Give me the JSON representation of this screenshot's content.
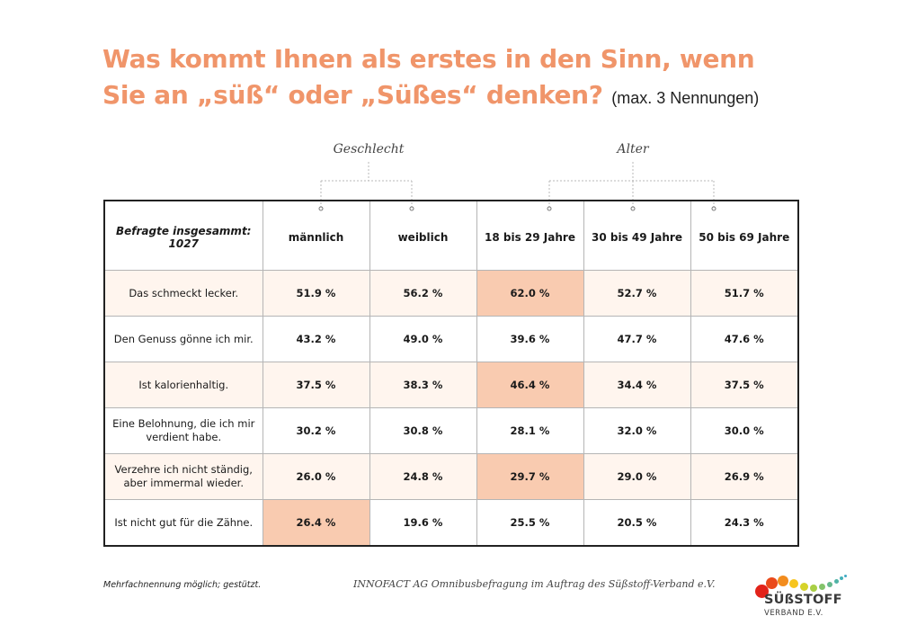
{
  "title": {
    "line1": "Was kommt Ihnen als erstes in den Sinn, wenn",
    "line2": "Sie an „süß“ oder „Süßes“ denken?",
    "subtitle": "(max. 3 Nennungen)"
  },
  "groups": {
    "gender_label": "Geschlecht",
    "age_label": "Alter"
  },
  "chart_data": {
    "type": "table",
    "title": "Was kommt Ihnen als erstes in den Sinn, wenn Sie an „süß“ oder „Süßes“ denken? (max. 3 Nennungen)",
    "corner_note": "Befragte insgesammt: 1027",
    "column_groups": [
      {
        "name": "Geschlecht",
        "columns": [
          "männlich",
          "weiblich"
        ]
      },
      {
        "name": "Alter",
        "columns": [
          "18 bis 29 Jahre",
          "30 bis 49 Jahre",
          "50 bis 69 Jahre"
        ]
      }
    ],
    "columns": [
      "männlich",
      "weiblich",
      "18 bis 29 Jahre",
      "30 bis 49 Jahre",
      "50 bis 69 Jahre"
    ],
    "unit": "%",
    "rows": [
      {
        "label": "Das schmeckt lecker.",
        "values": [
          51.9,
          56.2,
          62.0,
          52.7,
          51.7
        ],
        "display": [
          "51.9 %",
          "56.2 %",
          "62.0 %",
          "52.7 %",
          "51.7 %"
        ],
        "highlight": [
          false,
          false,
          true,
          false,
          false
        ],
        "shaded": true
      },
      {
        "label": "Den Genuss gönne ich mir.",
        "values": [
          43.2,
          49.0,
          39.6,
          47.7,
          47.6
        ],
        "display": [
          "43.2 %",
          "49.0 %",
          "39.6 %",
          "47.7 %",
          "47.6 %"
        ],
        "highlight": [
          false,
          false,
          false,
          false,
          false
        ],
        "shaded": false
      },
      {
        "label": "Ist kalorienhaltig.",
        "values": [
          37.5,
          38.3,
          46.4,
          34.4,
          37.5
        ],
        "display": [
          "37.5 %",
          "38.3 %",
          "46.4 %",
          "34.4 %",
          "37.5 %"
        ],
        "highlight": [
          false,
          false,
          true,
          false,
          false
        ],
        "shaded": true
      },
      {
        "label": "Eine Belohnung, die ich mir verdient habe.",
        "values": [
          30.2,
          30.8,
          28.1,
          32.0,
          30.0
        ],
        "display": [
          "30.2 %",
          "30.8 %",
          "28.1 %",
          "32.0 %",
          "30.0 %"
        ],
        "highlight": [
          false,
          false,
          false,
          false,
          false
        ],
        "shaded": false
      },
      {
        "label": "Verzehre ich nicht ständig, aber immermal wieder.",
        "values": [
          26.0,
          24.8,
          29.7,
          29.0,
          26.9
        ],
        "display": [
          "26.0 %",
          "24.8 %",
          "29.7 %",
          "29.0 %",
          "26.9 %"
        ],
        "highlight": [
          false,
          false,
          true,
          false,
          false
        ],
        "shaded": true
      },
      {
        "label": "Ist nicht gut für die Zähne.",
        "values": [
          26.4,
          19.6,
          25.5,
          20.5,
          24.3
        ],
        "display": [
          "26.4 %",
          "19.6 %",
          "25.5 %",
          "20.5 %",
          "24.3 %"
        ],
        "highlight": [
          true,
          false,
          false,
          false,
          false
        ],
        "shaded": false
      }
    ],
    "colors": {
      "title": "#f0956a",
      "row_shade": "#fff5ee",
      "highlight": "#f9cbb0",
      "border": "#222222",
      "grid": "#b5b5b5"
    }
  },
  "footer": {
    "note": "Mehrfachnennung möglich; gestützt.",
    "source": "INNOFACT AG Omnibusbefragung im Auftrag des Süßstoff-Verband e.V."
  },
  "logo": {
    "name": "SÜßSTOFF",
    "sub": "VERBAND E.V.",
    "dot_colors": [
      "#e2231a",
      "#ea4a1a",
      "#f28c1e",
      "#f7c51e",
      "#d6d32a",
      "#a9cf45",
      "#83c36a",
      "#66b88e",
      "#4fb3a6",
      "#45b0b8",
      "#3fa9c4"
    ]
  }
}
